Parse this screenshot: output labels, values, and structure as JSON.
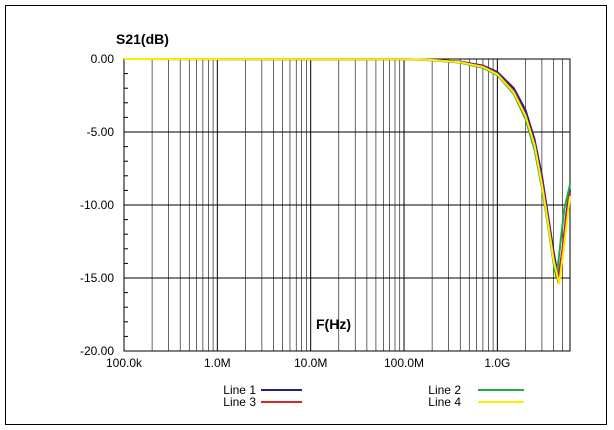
{
  "chart_data": {
    "type": "line",
    "title": "",
    "ylabel": "S21(dB)",
    "xlabel": "F(Hz)",
    "x_scale": "log",
    "xlim": [
      100000,
      6000000000
    ],
    "ylim": [
      -20,
      0
    ],
    "x_ticks": [
      {
        "value": 100000,
        "label": "100.0k"
      },
      {
        "value": 1000000,
        "label": "1.0M"
      },
      {
        "value": 10000000,
        "label": "10.0M"
      },
      {
        "value": 100000000,
        "label": "100.0M"
      },
      {
        "value": 1000000000,
        "label": "1.0G"
      }
    ],
    "y_ticks": [
      {
        "value": 0,
        "label": "0.00"
      },
      {
        "value": -5,
        "label": "-5.00"
      },
      {
        "value": -10,
        "label": "-10.00"
      },
      {
        "value": -15,
        "label": "-15.00"
      },
      {
        "value": -20,
        "label": "-20.00"
      }
    ],
    "grid": true,
    "legend_position": "bottom",
    "series": [
      {
        "name": "Line 1",
        "color": "#1f1f8f",
        "x": [
          100000,
          100000000,
          200000000,
          400000000,
          700000000,
          1000000000,
          1500000000,
          2000000000,
          2500000000,
          3000000000,
          3500000000,
          4000000000,
          4500000000,
          5000000000,
          5500000000,
          6000000000
        ],
        "y": [
          0,
          -0.02,
          -0.05,
          -0.18,
          -0.45,
          -0.9,
          -2.0,
          -3.5,
          -5.5,
          -8.0,
          -10.8,
          -13.2,
          -15.0,
          -13.0,
          -10.5,
          -9.0
        ]
      },
      {
        "name": "Line 2",
        "color": "#22aa44",
        "x": [
          100000,
          100000000,
          200000000,
          400000000,
          700000000,
          1000000000,
          1500000000,
          2000000000,
          2500000000,
          3000000000,
          3500000000,
          4000000000,
          4300000000,
          4700000000,
          5200000000,
          6000000000
        ],
        "y": [
          0,
          -0.03,
          -0.08,
          -0.25,
          -0.6,
          -1.1,
          -2.4,
          -4.1,
          -6.2,
          -8.8,
          -11.5,
          -14.0,
          -15.0,
          -12.8,
          -10.3,
          -8.6
        ]
      },
      {
        "name": "Line 3",
        "color": "#dd2222",
        "x": [
          100000,
          100000000,
          200000000,
          400000000,
          700000000,
          1000000000,
          1500000000,
          2000000000,
          2500000000,
          3000000000,
          3500000000,
          4000000000,
          4500000000,
          5000000000,
          5500000000,
          6000000000
        ],
        "y": [
          0,
          -0.02,
          -0.06,
          -0.2,
          -0.5,
          -1.0,
          -2.2,
          -3.8,
          -5.8,
          -8.4,
          -11.1,
          -13.6,
          -15.3,
          -13.0,
          -10.8,
          -9.2
        ]
      },
      {
        "name": "Line 4",
        "color": "#ffee00",
        "x": [
          100000,
          100000000,
          200000000,
          400000000,
          700000000,
          1000000000,
          1500000000,
          2000000000,
          2500000000,
          3000000000,
          3500000000,
          4000000000,
          4600000000,
          5100000000,
          5600000000,
          6000000000
        ],
        "y": [
          0,
          -0.02,
          -0.07,
          -0.22,
          -0.55,
          -1.05,
          -2.3,
          -3.9,
          -5.9,
          -8.6,
          -11.3,
          -13.8,
          -15.4,
          -13.2,
          -11.0,
          -9.4
        ]
      }
    ]
  }
}
